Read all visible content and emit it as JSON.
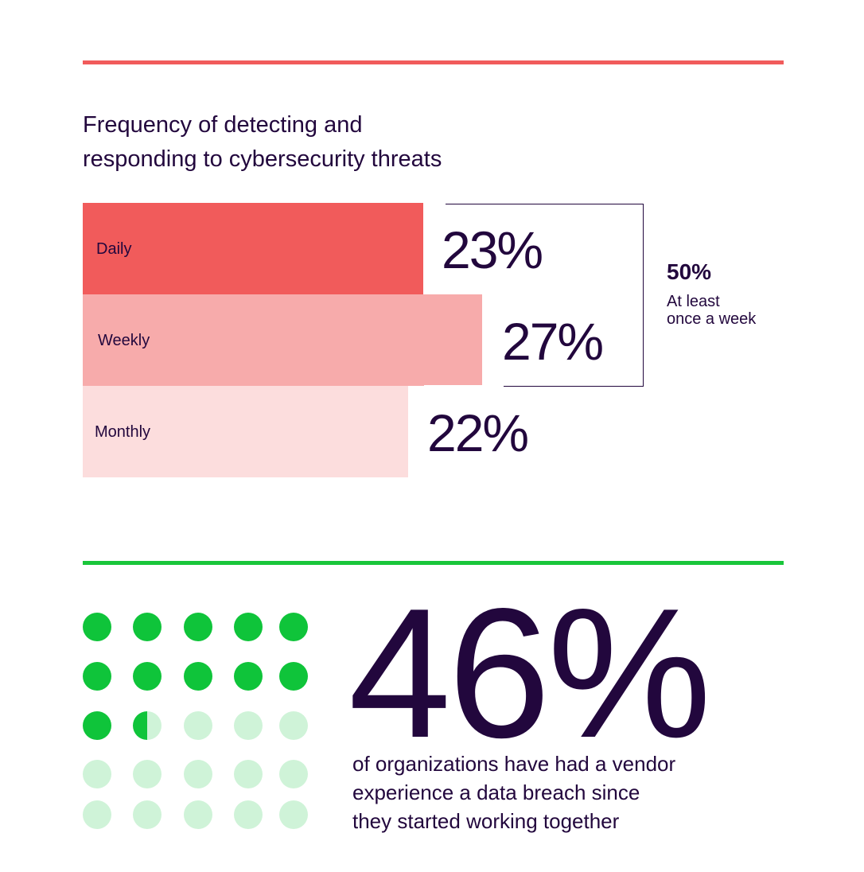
{
  "header": {
    "title_lines": [
      "Frequency of detecting and",
      "responding to cybersecurity threats"
    ]
  },
  "chart_data": [
    {
      "type": "bar",
      "orientation": "horizontal",
      "title": "Frequency of detecting and responding to cybersecurity threats",
      "categories": [
        "Daily",
        "Weekly",
        "Monthly"
      ],
      "values": [
        23,
        27,
        22
      ],
      "value_labels": [
        "23%",
        "27%",
        "22%"
      ],
      "unit": "%",
      "colors": [
        "#f15b5b",
        "#f7abab",
        "#fcdddd"
      ],
      "bracket": {
        "value": "50%",
        "label_lines": [
          "At least",
          "once a week"
        ],
        "spans": [
          "Daily",
          "Weekly"
        ]
      }
    },
    {
      "type": "pictogram",
      "total_units": 25,
      "filled_units": 11.5,
      "value": "46%",
      "caption_lines": [
        "of organizations have had a vendor",
        "experience a data breach since",
        "they started working together"
      ],
      "filled_color": "#0fc43a",
      "empty_color": "#cff3d8"
    }
  ],
  "colors": {
    "accent_red": "#f15b5b",
    "accent_green": "#19c63a",
    "text": "#22073d"
  }
}
